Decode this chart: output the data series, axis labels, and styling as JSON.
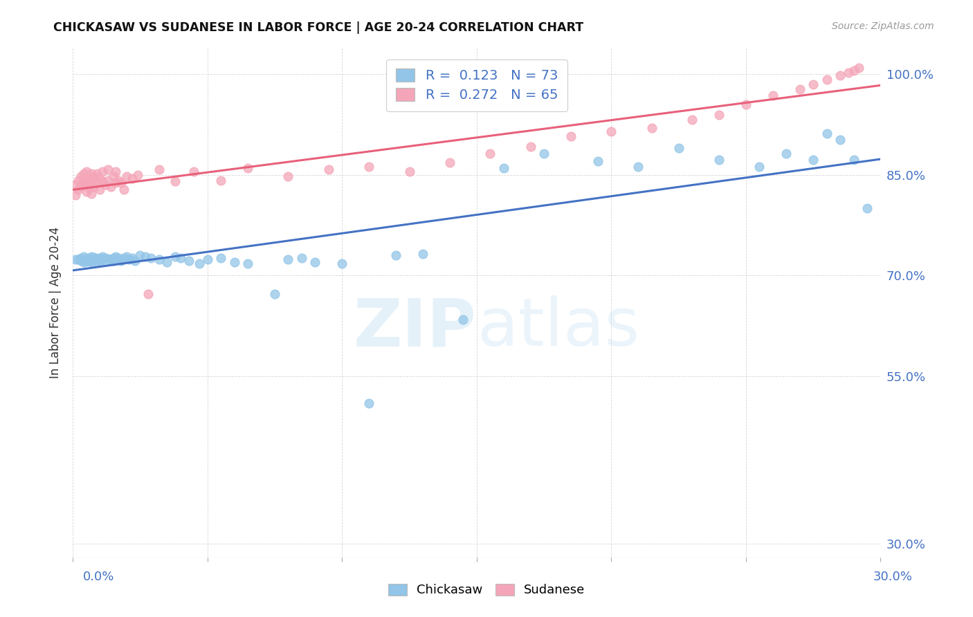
{
  "title": "CHICKASAW VS SUDANESE IN LABOR FORCE | AGE 20-24 CORRELATION CHART",
  "source": "Source: ZipAtlas.com",
  "ylabel": "In Labor Force | Age 20-24",
  "ytick_labels": [
    "100.0%",
    "85.0%",
    "70.0%",
    "55.0%",
    "30.0%"
  ],
  "ytick_values": [
    1.0,
    0.85,
    0.7,
    0.55,
    0.3
  ],
  "xlim": [
    0.0,
    0.3
  ],
  "ylim": [
    0.28,
    1.04
  ],
  "chickasaw_color": "#92c5e8",
  "sudanese_color": "#f4a6b8",
  "chickasaw_line_color": "#4472c4",
  "sudanese_line_color": "#e8607a",
  "chickasaw_R": 0.123,
  "chickasaw_N": 73,
  "sudanese_R": 0.272,
  "sudanese_N": 65,
  "chickasaw_x": [
    0.001,
    0.002,
    0.003,
    0.003,
    0.004,
    0.004,
    0.005,
    0.005,
    0.005,
    0.006,
    0.006,
    0.007,
    0.007,
    0.007,
    0.008,
    0.008,
    0.009,
    0.009,
    0.01,
    0.01,
    0.01,
    0.011,
    0.011,
    0.012,
    0.012,
    0.013,
    0.014,
    0.015,
    0.015,
    0.016,
    0.017,
    0.017,
    0.018,
    0.019,
    0.02,
    0.021,
    0.022,
    0.023,
    0.025,
    0.027,
    0.029,
    0.032,
    0.035,
    0.038,
    0.04,
    0.043,
    0.047,
    0.05,
    0.055,
    0.06,
    0.065,
    0.075,
    0.08,
    0.085,
    0.09,
    0.1,
    0.11,
    0.12,
    0.13,
    0.145,
    0.16,
    0.175,
    0.195,
    0.21,
    0.225,
    0.24,
    0.255,
    0.265,
    0.275,
    0.28,
    0.285,
    0.29,
    0.295
  ],
  "chickasaw_y": [
    0.724,
    0.724,
    0.726,
    0.722,
    0.728,
    0.72,
    0.725,
    0.723,
    0.721,
    0.726,
    0.722,
    0.728,
    0.724,
    0.72,
    0.727,
    0.723,
    0.725,
    0.721,
    0.726,
    0.724,
    0.722,
    0.728,
    0.724,
    0.726,
    0.722,
    0.725,
    0.724,
    0.726,
    0.722,
    0.728,
    0.724,
    0.726,
    0.722,
    0.726,
    0.728,
    0.724,
    0.726,
    0.722,
    0.73,
    0.728,
    0.726,
    0.724,
    0.72,
    0.728,
    0.726,
    0.722,
    0.718,
    0.724,
    0.726,
    0.72,
    0.718,
    0.672,
    0.724,
    0.726,
    0.72,
    0.718,
    0.51,
    0.73,
    0.732,
    0.634,
    0.86,
    0.882,
    0.87,
    0.862,
    0.89,
    0.872,
    0.862,
    0.882,
    0.872,
    0.912,
    0.902,
    0.872,
    0.8
  ],
  "sudanese_x": [
    0.001,
    0.001,
    0.002,
    0.002,
    0.003,
    0.003,
    0.004,
    0.004,
    0.004,
    0.005,
    0.005,
    0.005,
    0.006,
    0.006,
    0.007,
    0.007,
    0.007,
    0.008,
    0.008,
    0.009,
    0.009,
    0.01,
    0.01,
    0.011,
    0.011,
    0.012,
    0.013,
    0.013,
    0.014,
    0.015,
    0.016,
    0.016,
    0.017,
    0.018,
    0.019,
    0.02,
    0.022,
    0.024,
    0.028,
    0.032,
    0.038,
    0.045,
    0.055,
    0.065,
    0.08,
    0.095,
    0.11,
    0.125,
    0.14,
    0.155,
    0.17,
    0.185,
    0.2,
    0.215,
    0.23,
    0.24,
    0.25,
    0.26,
    0.27,
    0.275,
    0.28,
    0.285,
    0.288,
    0.29,
    0.292
  ],
  "sudanese_y": [
    0.82,
    0.835,
    0.828,
    0.842,
    0.832,
    0.848,
    0.838,
    0.852,
    0.836,
    0.825,
    0.84,
    0.855,
    0.83,
    0.845,
    0.822,
    0.838,
    0.852,
    0.832,
    0.848,
    0.838,
    0.852,
    0.828,
    0.845,
    0.84,
    0.855,
    0.835,
    0.842,
    0.858,
    0.832,
    0.848,
    0.838,
    0.855,
    0.842,
    0.838,
    0.828,
    0.848,
    0.845,
    0.85,
    0.672,
    0.858,
    0.84,
    0.855,
    0.842,
    0.86,
    0.848,
    0.858,
    0.862,
    0.855,
    0.868,
    0.882,
    0.892,
    0.908,
    0.915,
    0.92,
    0.932,
    0.94,
    0.955,
    0.968,
    0.978,
    0.985,
    0.992,
    0.998,
    1.002,
    1.005,
    1.01
  ]
}
